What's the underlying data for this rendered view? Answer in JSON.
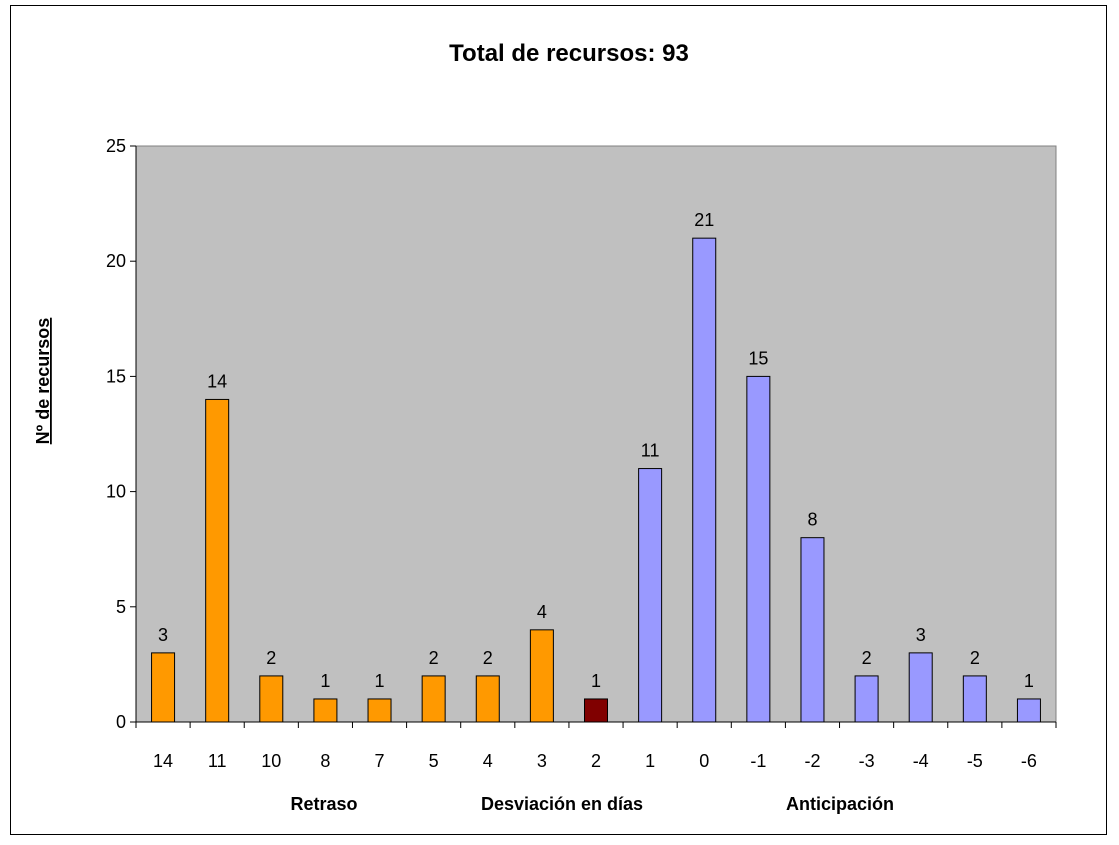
{
  "chart_data": {
    "type": "bar",
    "title": "Total de recursos: 93",
    "xlabel": "Desviación en días",
    "xlabel_left": "Retraso",
    "xlabel_right": "Anticipación",
    "ylabel": "Nº de recursos",
    "ylim": [
      0,
      25
    ],
    "yticks": [
      0,
      5,
      10,
      15,
      20,
      25
    ],
    "grid": false,
    "plot_background": "#c0c0c0",
    "categories": [
      "14",
      "11",
      "10",
      "8",
      "7",
      "5",
      "4",
      "3",
      "2",
      "1",
      "0",
      "-1",
      "-2",
      "-3",
      "-4",
      "-5",
      "-6"
    ],
    "values": [
      3,
      14,
      2,
      1,
      1,
      2,
      2,
      4,
      1,
      11,
      21,
      15,
      8,
      2,
      3,
      2,
      1
    ],
    "bar_colors": [
      "#ff9900",
      "#ff9900",
      "#ff9900",
      "#ff9900",
      "#ff9900",
      "#ff9900",
      "#ff9900",
      "#ff9900",
      "#800000",
      "#9999ff",
      "#9999ff",
      "#9999ff",
      "#9999ff",
      "#9999ff",
      "#9999ff",
      "#9999ff",
      "#9999ff"
    ],
    "data_labels": [
      "3",
      "14",
      "2",
      "1",
      "1",
      "2",
      "2",
      "4",
      "1",
      "11",
      "21",
      "15",
      "8",
      "2",
      "3",
      "2",
      "1"
    ]
  }
}
